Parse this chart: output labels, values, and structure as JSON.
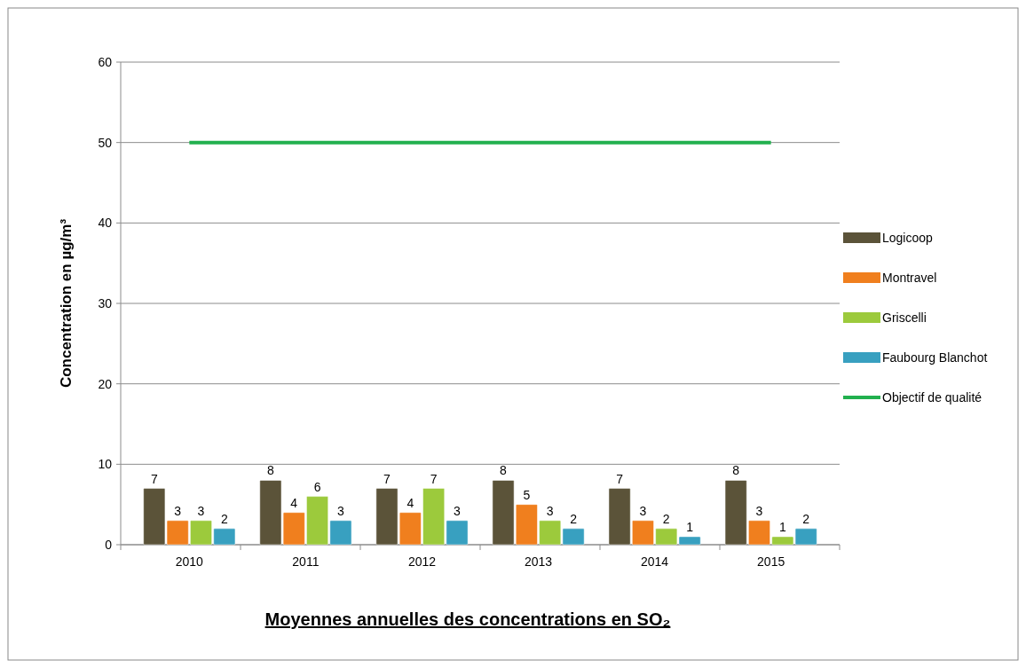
{
  "chart_data": {
    "type": "bar",
    "title": "Moyennes annuelles des concentrations en SO₂",
    "ylabel": "Concentration en µg/m³",
    "categories": [
      "2010",
      "2011",
      "2012",
      "2013",
      "2014",
      "2015"
    ],
    "series": [
      {
        "name": "Logicoop",
        "color": "#5b5339",
        "values": [
          7,
          8,
          7,
          8,
          7,
          8
        ],
        "value_labels": [
          "7",
          "8",
          "7",
          "8",
          "7",
          "8"
        ]
      },
      {
        "name": "Montravel",
        "color": "#f07f1e",
        "values": [
          3,
          4,
          4,
          5,
          3,
          3
        ],
        "value_labels": [
          "3",
          "4",
          "4",
          "5",
          "3",
          "3"
        ]
      },
      {
        "name": "Griscelli",
        "color": "#9cca3c",
        "values": [
          3,
          6,
          7,
          3,
          2,
          1
        ],
        "value_labels": [
          "3",
          "6",
          "7",
          "3",
          "2",
          "1"
        ]
      },
      {
        "name": "Faubourg Blanchot",
        "color": "#38a0c0",
        "values": [
          2,
          3,
          3,
          2,
          1,
          2
        ],
        "value_labels": [
          "2",
          "3",
          "3",
          "2",
          "1",
          "2"
        ]
      },
      {
        "name": "Objectif de qualité",
        "type": "line",
        "color": "#22b04e",
        "values": [
          50,
          50,
          50,
          50,
          50,
          50
        ]
      }
    ],
    "ylim": [
      0,
      60
    ],
    "yticks": [
      0,
      10,
      20,
      30,
      40,
      50,
      60
    ],
    "grid": "y",
    "legend": "right"
  }
}
